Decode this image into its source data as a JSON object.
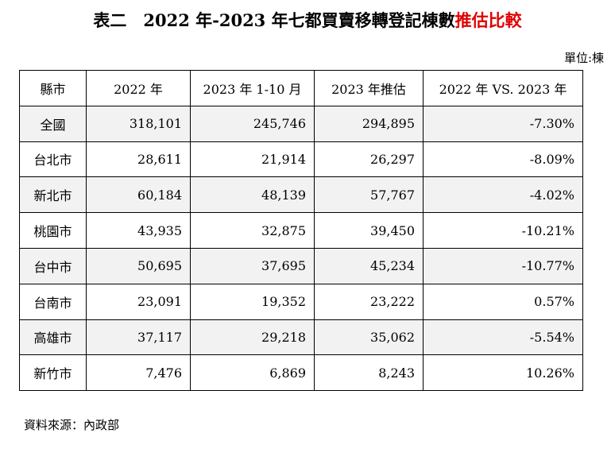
{
  "title": {
    "text": "表二　2022 年-2023 年七都買賣移轉登記棟數",
    "highlight": "推估比較"
  },
  "unit": "單位:棟",
  "table": {
    "header": [
      "縣市",
      "2022 年",
      "2023 年 1-10 月",
      "2023 年推估",
      "2022 年 VS. 2023 年"
    ],
    "rows": [
      [
        "全國",
        "318,101",
        "245,746",
        "294,895",
        "-7.30%"
      ],
      [
        "台北市",
        "28,611",
        "21,914",
        "26,297",
        "-8.09%"
      ],
      [
        "新北市",
        "60,184",
        "48,139",
        "57,767",
        "-4.02%"
      ],
      [
        "桃園市",
        "43,935",
        "32,875",
        "39,450",
        "-10.21%"
      ],
      [
        "台中市",
        "50,695",
        "37,695",
        "45,234",
        "-10.77%"
      ],
      [
        "台南市",
        "23,091",
        "19,352",
        "23,222",
        "0.57%"
      ],
      [
        "高雄市",
        "37,117",
        "29,218",
        "35,062",
        "-5.54%"
      ],
      [
        "新竹市",
        "7,476",
        "6,869",
        "8,243",
        "10.26%"
      ]
    ]
  },
  "source": "資料來源：內政部"
}
